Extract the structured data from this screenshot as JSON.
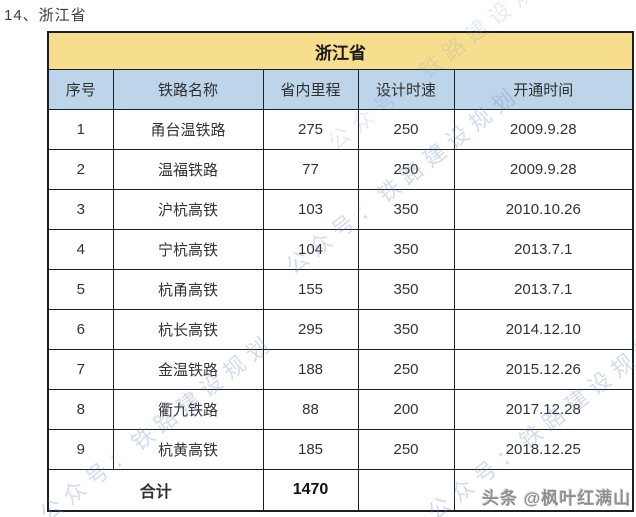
{
  "page": {
    "heading": "14、浙江省"
  },
  "table": {
    "title": "浙江省",
    "columns": [
      "序号",
      "铁路名称",
      "省内里程",
      "设计时速",
      "开通时间"
    ],
    "rows": [
      {
        "no": "1",
        "name": "甬台温铁路",
        "mileage": "275",
        "speed": "250",
        "opened": "2009.9.28"
      },
      {
        "no": "2",
        "name": "温福铁路",
        "mileage": "77",
        "speed": "250",
        "opened": "2009.9.28"
      },
      {
        "no": "3",
        "name": "沪杭高铁",
        "mileage": "103",
        "speed": "350",
        "opened": "2010.10.26"
      },
      {
        "no": "4",
        "name": "宁杭高铁",
        "mileage": "104",
        "speed": "350",
        "opened": "2013.7.1"
      },
      {
        "no": "5",
        "name": "杭甬高铁",
        "mileage": "155",
        "speed": "350",
        "opened": "2013.7.1"
      },
      {
        "no": "6",
        "name": "杭长高铁",
        "mileage": "295",
        "speed": "350",
        "opened": "2014.12.10"
      },
      {
        "no": "7",
        "name": "金温铁路",
        "mileage": "188",
        "speed": "250",
        "opened": "2015.12.26"
      },
      {
        "no": "8",
        "name": "衢九铁路",
        "mileage": "88",
        "speed": "200",
        "opened": "2017.12.28"
      },
      {
        "no": "9",
        "name": "杭黄高铁",
        "mileage": "185",
        "speed": "250",
        "opened": "2018.12.25"
      }
    ],
    "total": {
      "label": "合计",
      "mileage": "1470"
    }
  },
  "watermarks": {
    "diagonal": "公众号：铁路建设规划",
    "credit": "头条 @枫叶红满山"
  },
  "colors": {
    "title_bg": "#F7DE8F",
    "header_bg": "#BCD5EA",
    "border": "#1E1E26",
    "diagonal_watermark": "#6A8CBE",
    "credit_watermark": "#8F8F8F"
  }
}
